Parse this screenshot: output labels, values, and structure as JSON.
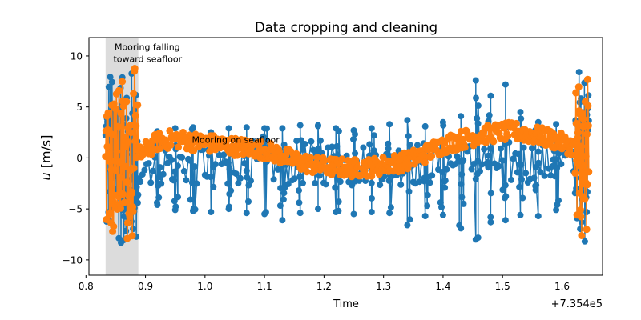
{
  "chart_data": {
    "type": "scatter",
    "title": "Data cropping and cleaning",
    "xlabel": "Time",
    "ylabel_italic": "u",
    "ylabel_unit": " [m/s]",
    "x_offset_label": "+7.354e5",
    "xlim": [
      0.805,
      1.668
    ],
    "ylim": [
      -11.5,
      11.8
    ],
    "xticks": [
      0.8,
      0.9,
      1.0,
      1.1,
      1.2,
      1.3,
      1.4,
      1.5,
      1.6
    ],
    "xtick_labels": [
      "0.8",
      "0.9",
      "1.0",
      "1.1",
      "1.2",
      "1.3",
      "1.4",
      "1.5",
      "1.6"
    ],
    "yticks": [
      -10,
      -5,
      0,
      5,
      10
    ],
    "ytick_labels": [
      "−10",
      "−5",
      "0",
      "5",
      "10"
    ],
    "grid": false,
    "shaded_region": {
      "x": [
        0.833,
        0.888
      ],
      "color": "#dcdcdc"
    },
    "annotations": [
      {
        "text": "Mooring falling",
        "x": 0.848,
        "y": 10.6
      },
      {
        "text": "toward seafloor",
        "x": 0.846,
        "y": 9.4
      },
      {
        "text": "Mooring on seafloor",
        "x": 0.978,
        "y": 1.5
      }
    ],
    "series": [
      {
        "color": "#1f77b4",
        "x_start": 0.833,
        "x_end": 1.645,
        "spikes": [
          [
            0.92,
            -4.6,
            2.6
          ],
          [
            0.95,
            -5.1,
            2.9
          ],
          [
            0.98,
            -5.2,
            3.0
          ],
          [
            1.01,
            -5.3,
            2.5
          ],
          [
            1.04,
            -5.0,
            2.9
          ],
          [
            1.07,
            -5.4,
            3.0
          ],
          [
            1.1,
            -5.5,
            2.9
          ],
          [
            1.13,
            -6.1,
            2.9
          ],
          [
            1.16,
            -5.4,
            3.2
          ],
          [
            1.19,
            -5.0,
            3.2
          ],
          [
            1.22,
            -5.3,
            2.9
          ],
          [
            1.25,
            -5.5,
            2.7
          ],
          [
            1.28,
            -5.3,
            2.9
          ],
          [
            1.31,
            -5.4,
            3.3
          ],
          [
            1.34,
            -6.6,
            3.7
          ],
          [
            1.37,
            -5.7,
            3.1
          ],
          [
            1.4,
            -5.6,
            3.5
          ],
          [
            1.43,
            -6.9,
            4.1
          ],
          [
            1.455,
            -8.0,
            7.6
          ],
          [
            1.48,
            -6.3,
            6.1
          ],
          [
            1.505,
            -6.1,
            7.2
          ],
          [
            1.53,
            -5.6,
            4.5
          ],
          [
            1.56,
            -5.7,
            3.5
          ],
          [
            1.59,
            -5.1,
            3.3
          ]
        ]
      },
      {
        "color": "#ff7f0e",
        "x_start": 0.833,
        "x_end": 1.645,
        "baseline": [
          [
            0.89,
            0.3
          ],
          [
            0.92,
            1.6
          ],
          [
            0.95,
            1.9
          ],
          [
            0.98,
            1.6
          ],
          [
            1.01,
            1.4
          ],
          [
            1.04,
            1.2
          ],
          [
            1.07,
            1.0
          ],
          [
            1.1,
            0.8
          ],
          [
            1.13,
            0.2
          ],
          [
            1.16,
            -0.4
          ],
          [
            1.19,
            -0.8
          ],
          [
            1.22,
            -0.9
          ],
          [
            1.25,
            -1.0
          ],
          [
            1.28,
            -0.9
          ],
          [
            1.31,
            -0.6
          ],
          [
            1.34,
            -0.3
          ],
          [
            1.37,
            0.4
          ],
          [
            1.4,
            1.3
          ],
          [
            1.43,
            1.8
          ],
          [
            1.46,
            2.2
          ],
          [
            1.49,
            2.5
          ],
          [
            1.52,
            2.6
          ],
          [
            1.55,
            2.3
          ],
          [
            1.58,
            1.9
          ],
          [
            1.61,
            1.3
          ],
          [
            1.62,
            1.0
          ]
        ]
      }
    ]
  }
}
